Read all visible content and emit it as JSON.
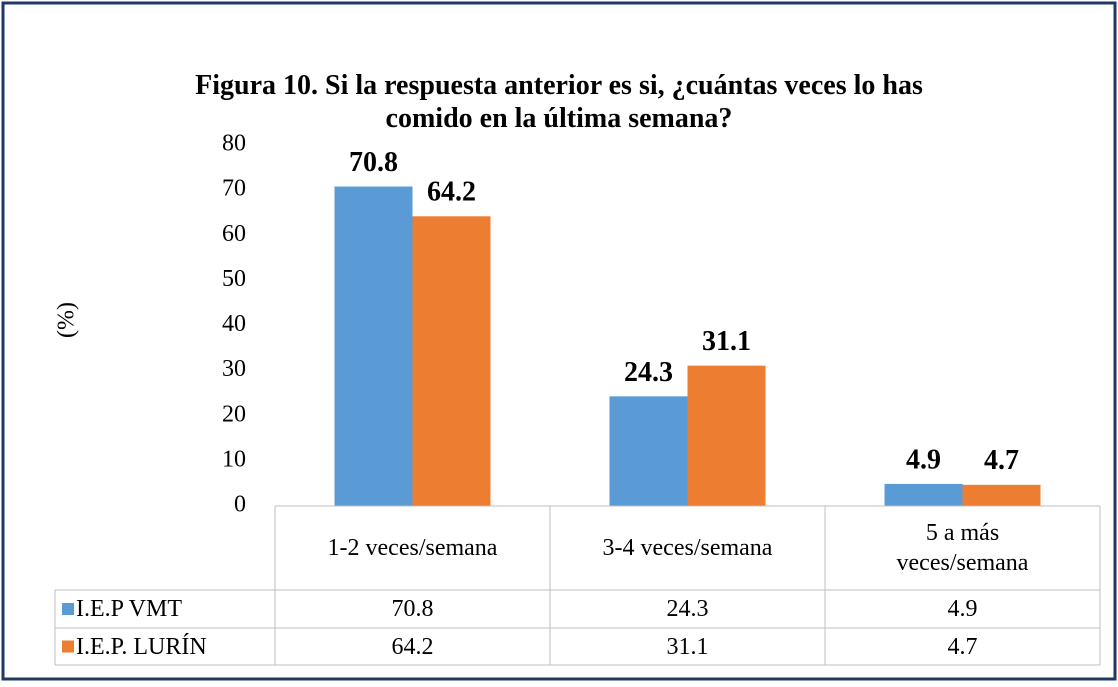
{
  "chart_data": {
    "type": "bar",
    "title": "Figura 10. Si la respuesta anterior es si, ¿cuántas veces lo has comido en la última semana?",
    "ylabel": "(%)",
    "categories": [
      "1-2 veces/semana",
      "3-4 veces/semana",
      "5 a más veces/semana"
    ],
    "series": [
      {
        "name": "I.E.P VMT",
        "color": "#5b9bd5",
        "values": [
          70.8,
          24.3,
          4.9
        ]
      },
      {
        "name": "I.E.P. LURÍN",
        "color": "#ed7d31",
        "values": [
          64.2,
          31.1,
          4.7
        ]
      }
    ],
    "ylim": [
      0,
      80
    ],
    "yticks": [
      0,
      10,
      20,
      30,
      40,
      50,
      60,
      70,
      80
    ],
    "grid": false,
    "data_table": true
  }
}
